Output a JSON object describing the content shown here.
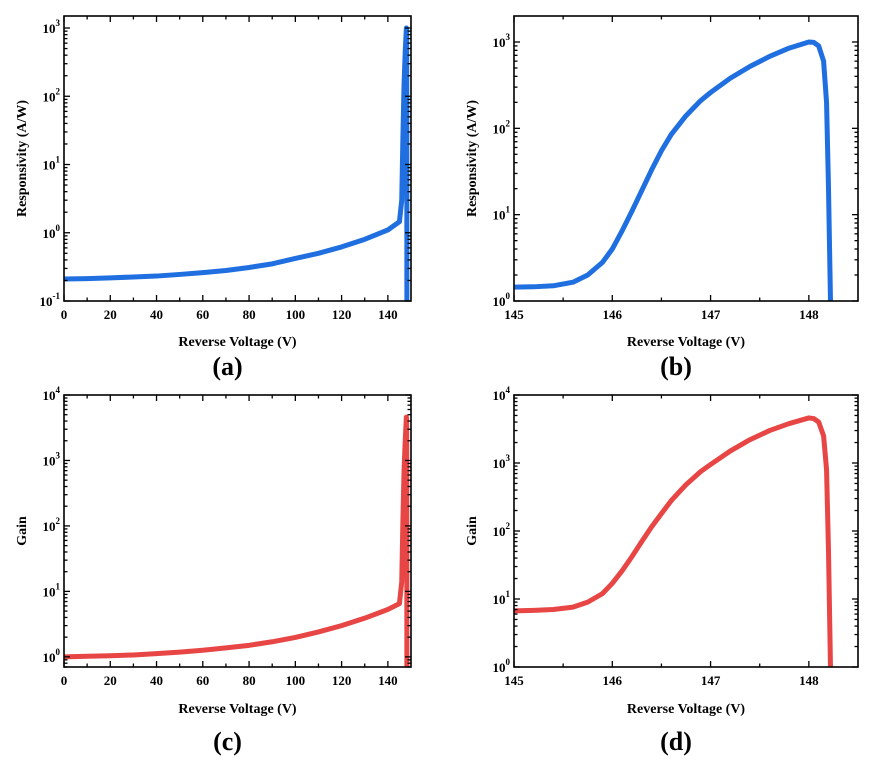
{
  "chart_data": [
    {
      "id": "a",
      "type": "line",
      "panel_label": "(a)",
      "xlabel": "Reverse Voltage (V)",
      "ylabel": "Responsivity (A/W)",
      "xscale": "linear",
      "yscale": "log",
      "xlim": [
        0,
        150
      ],
      "ylim": [
        0.1,
        1500
      ],
      "x_ticks": [
        0,
        20,
        40,
        60,
        80,
        100,
        120,
        140
      ],
      "x_tick_labels": [
        "0",
        "20",
        "40",
        "60",
        "80",
        "100",
        "120",
        "140"
      ],
      "y_ticks": [
        0.1,
        1,
        10,
        100,
        1000
      ],
      "y_tick_labels": [
        [
          "10",
          "-1"
        ],
        [
          "10",
          "0"
        ],
        [
          "10",
          "1"
        ],
        [
          "10",
          "2"
        ],
        [
          "10",
          "3"
        ]
      ],
      "grid": false,
      "series": [
        {
          "name": "Responsivity",
          "color": "#1f6fe0",
          "points": [
            [
              0,
              0.21
            ],
            [
              10,
              0.213
            ],
            [
              20,
              0.218
            ],
            [
              30,
              0.225
            ],
            [
              40,
              0.232
            ],
            [
              50,
              0.245
            ],
            [
              60,
              0.26
            ],
            [
              70,
              0.28
            ],
            [
              80,
              0.31
            ],
            [
              90,
              0.35
            ],
            [
              100,
              0.42
            ],
            [
              110,
              0.5
            ],
            [
              120,
              0.62
            ],
            [
              130,
              0.8
            ],
            [
              140,
              1.1
            ],
            [
              145,
              1.45
            ],
            [
              146,
              3
            ],
            [
              146.5,
              25
            ],
            [
              147,
              150
            ],
            [
              147.5,
              450
            ],
            [
              148,
              1000
            ],
            [
              148.1,
              950
            ],
            [
              148.15,
              300
            ],
            [
              148.2,
              30
            ],
            [
              148.22,
              0.1
            ]
          ]
        }
      ]
    },
    {
      "id": "b",
      "type": "line",
      "panel_label": "(b)",
      "xlabel": "Reverse Voltage (V)",
      "ylabel": "Responsivity (A/W)",
      "xscale": "linear",
      "yscale": "log",
      "xlim": [
        145,
        148.5
      ],
      "ylim": [
        1,
        2000
      ],
      "x_ticks": [
        145,
        146,
        147,
        148
      ],
      "x_tick_labels": [
        "145",
        "146",
        "147",
        "148"
      ],
      "y_ticks": [
        1,
        10,
        100,
        1000
      ],
      "y_tick_labels": [
        [
          "10",
          "0"
        ],
        [
          "10",
          "1"
        ],
        [
          "10",
          "2"
        ],
        [
          "10",
          "3"
        ]
      ],
      "grid": false,
      "series": [
        {
          "name": "Responsivity",
          "color": "#1f6fe0",
          "points": [
            [
              145,
              1.45
            ],
            [
              145.2,
              1.46
            ],
            [
              145.4,
              1.5
            ],
            [
              145.6,
              1.65
            ],
            [
              145.75,
              2.0
            ],
            [
              145.9,
              2.8
            ],
            [
              146.0,
              4.0
            ],
            [
              146.1,
              6.5
            ],
            [
              146.2,
              11
            ],
            [
              146.3,
              19
            ],
            [
              146.4,
              33
            ],
            [
              146.5,
              55
            ],
            [
              146.6,
              85
            ],
            [
              146.75,
              140
            ],
            [
              146.9,
              210
            ],
            [
              147.0,
              260
            ],
            [
              147.2,
              380
            ],
            [
              147.4,
              520
            ],
            [
              147.6,
              680
            ],
            [
              147.8,
              850
            ],
            [
              148.0,
              1000
            ],
            [
              148.05,
              990
            ],
            [
              148.1,
              900
            ],
            [
              148.15,
              600
            ],
            [
              148.18,
              200
            ],
            [
              148.2,
              20
            ],
            [
              148.22,
              1
            ]
          ]
        }
      ]
    },
    {
      "id": "c",
      "type": "line",
      "panel_label": "(c)",
      "xlabel": "Reverse Voltage (V)",
      "ylabel": "Gain",
      "xscale": "linear",
      "yscale": "log",
      "xlim": [
        0,
        150
      ],
      "ylim": [
        0.7,
        10000
      ],
      "x_ticks": [
        0,
        20,
        40,
        60,
        80,
        100,
        120,
        140
      ],
      "x_tick_labels": [
        "0",
        "20",
        "40",
        "60",
        "80",
        "100",
        "120",
        "140"
      ],
      "y_ticks": [
        1,
        10,
        100,
        1000,
        10000
      ],
      "y_tick_labels": [
        [
          "10",
          "0"
        ],
        [
          "10",
          "1"
        ],
        [
          "10",
          "2"
        ],
        [
          "10",
          "3"
        ],
        [
          "10",
          "4"
        ]
      ],
      "grid": false,
      "series": [
        {
          "name": "Gain",
          "color": "#e84545",
          "points": [
            [
              0,
              1.0
            ],
            [
              10,
              1.02
            ],
            [
              20,
              1.04
            ],
            [
              30,
              1.07
            ],
            [
              40,
              1.12
            ],
            [
              50,
              1.18
            ],
            [
              60,
              1.26
            ],
            [
              70,
              1.37
            ],
            [
              80,
              1.5
            ],
            [
              90,
              1.7
            ],
            [
              100,
              1.98
            ],
            [
              110,
              2.4
            ],
            [
              120,
              3.0
            ],
            [
              130,
              3.9
            ],
            [
              140,
              5.3
            ],
            [
              145,
              6.5
            ],
            [
              146,
              14
            ],
            [
              146.5,
              120
            ],
            [
              147,
              700
            ],
            [
              147.5,
              2000
            ],
            [
              148,
              4600
            ],
            [
              148.1,
              4300
            ],
            [
              148.15,
              1500
            ],
            [
              148.2,
              100
            ],
            [
              148.22,
              0.7
            ]
          ]
        }
      ]
    },
    {
      "id": "d",
      "type": "line",
      "panel_label": "(d)",
      "xlabel": "Reverse Voltage (V)",
      "ylabel": "Gain",
      "xscale": "linear",
      "yscale": "log",
      "xlim": [
        145,
        148.5
      ],
      "ylim": [
        1,
        10000
      ],
      "x_ticks": [
        145,
        146,
        147,
        148
      ],
      "x_tick_labels": [
        "145",
        "146",
        "147",
        "148"
      ],
      "y_ticks": [
        1,
        10,
        100,
        1000,
        10000
      ],
      "y_tick_labels": [
        [
          "10",
          "0"
        ],
        [
          "10",
          "1"
        ],
        [
          "10",
          "2"
        ],
        [
          "10",
          "3"
        ],
        [
          "10",
          "4"
        ]
      ],
      "grid": false,
      "series": [
        {
          "name": "Gain",
          "color": "#e84545",
          "points": [
            [
              145,
              6.7
            ],
            [
              145.2,
              6.8
            ],
            [
              145.4,
              7.0
            ],
            [
              145.6,
              7.6
            ],
            [
              145.75,
              9.0
            ],
            [
              145.9,
              12
            ],
            [
              146.0,
              17
            ],
            [
              146.1,
              26
            ],
            [
              146.2,
              42
            ],
            [
              146.3,
              70
            ],
            [
              146.4,
              115
            ],
            [
              146.5,
              180
            ],
            [
              146.6,
              280
            ],
            [
              146.75,
              480
            ],
            [
              146.9,
              750
            ],
            [
              147.0,
              950
            ],
            [
              147.2,
              1500
            ],
            [
              147.4,
              2200
            ],
            [
              147.6,
              3000
            ],
            [
              147.8,
              3800
            ],
            [
              148.0,
              4600
            ],
            [
              148.05,
              4500
            ],
            [
              148.1,
              4000
            ],
            [
              148.15,
              2500
            ],
            [
              148.18,
              800
            ],
            [
              148.2,
              50
            ],
            [
              148.22,
              1
            ]
          ]
        }
      ]
    }
  ]
}
